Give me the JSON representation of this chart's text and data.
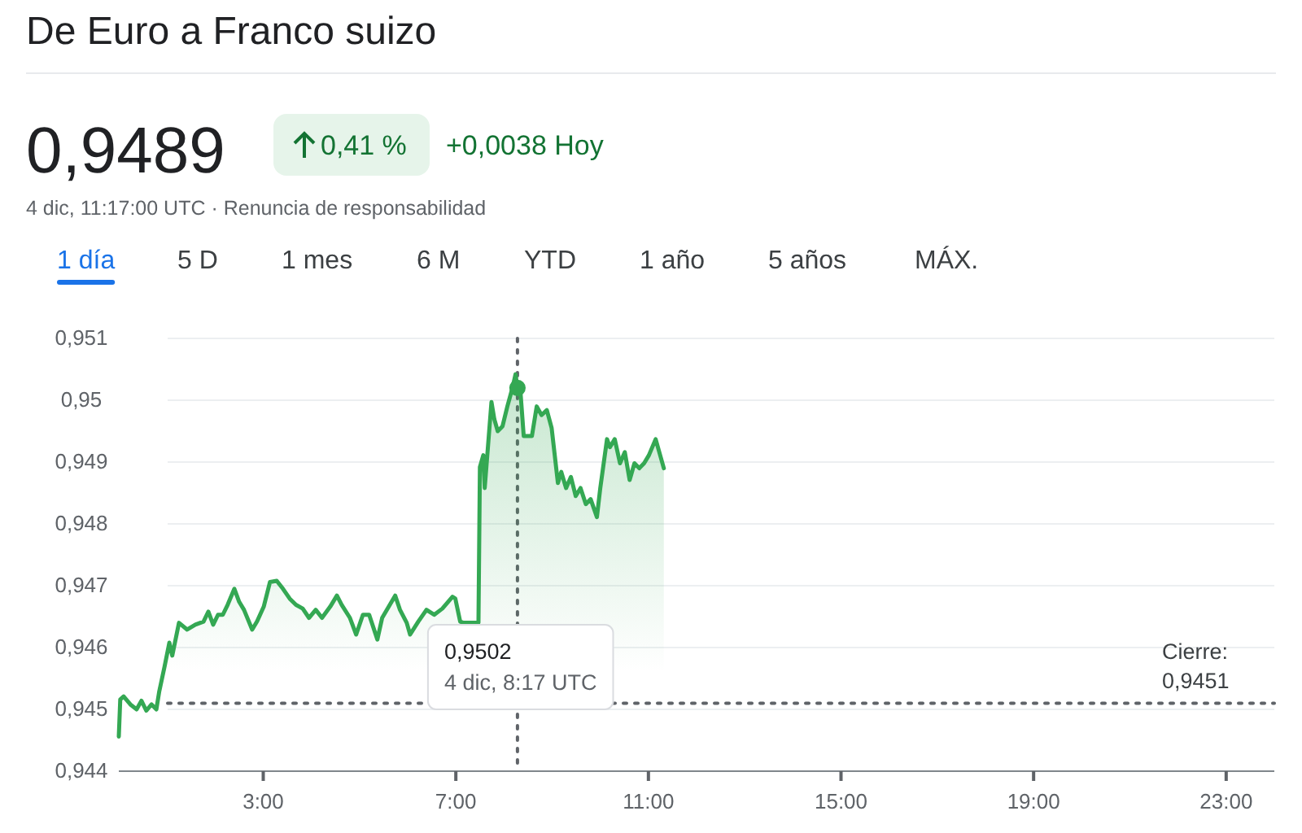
{
  "chart_data": {
    "type": "area",
    "title": "De Euro a Franco suizo",
    "annotations": [
      "0,9489",
      "0,41 %",
      "+0,0038 Hoy",
      "4 dic, 11:17:00 UTC · Renuncia de responsabilidad",
      "1 día",
      "5 D",
      "1 mes",
      "6 M",
      "YTD",
      "1 año",
      "5 años",
      "MÁX.",
      "0,9502\n4 dic, 8:17 UTC"
    ],
    "series": [
      {
        "color": "#34a853",
        "x": [
          0,
          0.03,
          0.1,
          0.24,
          0.37,
          0.47,
          0.57,
          0.68,
          0.78,
          0.84,
          0.95,
          1.05,
          1.11,
          1.25,
          1.42,
          1.59,
          1.76,
          1.86,
          1.96,
          2.06,
          2.16,
          2.26,
          2.4,
          2.5,
          2.6,
          2.77,
          2.87,
          3.01,
          3.14,
          3.28,
          3.41,
          3.55,
          3.68,
          3.82,
          3.95,
          4.09,
          4.22,
          4.39,
          4.53,
          4.63,
          4.8,
          4.93,
          5.07,
          5.2,
          5.37,
          5.47,
          5.74,
          5.84,
          5.98,
          6.05,
          6.22,
          6.39,
          6.55,
          6.72,
          6.93,
          6.99,
          7.09,
          7.16,
          7.47,
          7.5,
          7.57,
          7.6,
          7.74,
          7.8,
          7.87,
          7.97,
          8.07,
          8.18,
          8.24,
          8.28,
          8.34,
          8.41,
          8.58,
          8.68,
          8.78,
          8.89,
          8.99,
          9.12,
          9.19,
          9.29,
          9.39,
          9.49,
          9.59,
          9.7,
          9.8,
          9.93,
          10,
          10.14,
          10.2,
          10.3,
          10.41,
          10.51,
          10.61,
          10.71,
          10.81,
          10.91,
          11.01,
          11.15,
          11.32
        ],
        "values": [
          0.94456,
          0.94516,
          0.94521,
          0.94508,
          0.945,
          0.94514,
          0.94498,
          0.94508,
          0.945,
          0.94529,
          0.94569,
          0.94608,
          0.94587,
          0.9464,
          0.94629,
          0.94637,
          0.94642,
          0.94658,
          0.94637,
          0.94653,
          0.94653,
          0.94669,
          0.94695,
          0.94674,
          0.94661,
          0.94629,
          0.94642,
          0.94666,
          0.94706,
          0.94708,
          0.94695,
          0.94679,
          0.94669,
          0.94663,
          0.94648,
          0.94661,
          0.94648,
          0.94666,
          0.94684,
          0.94669,
          0.94648,
          0.94621,
          0.94653,
          0.94653,
          0.94613,
          0.94648,
          0.94684,
          0.94661,
          0.9464,
          0.94621,
          0.94642,
          0.94661,
          0.94653,
          0.94663,
          0.94682,
          0.94679,
          0.94642,
          0.9464,
          0.9464,
          0.94892,
          0.94911,
          0.94858,
          0.94997,
          0.94969,
          0.9495,
          0.94958,
          0.9499,
          0.95021,
          0.95042,
          0.9502,
          0.95016,
          0.94942,
          0.94942,
          0.9499,
          0.94976,
          0.94984,
          0.94955,
          0.94866,
          0.94884,
          0.94858,
          0.94876,
          0.94845,
          0.94858,
          0.94832,
          0.9484,
          0.94811,
          0.94858,
          0.94937,
          0.94924,
          0.94937,
          0.94898,
          0.94916,
          0.94871,
          0.94898,
          0.9489,
          0.94898,
          0.94911,
          0.94937,
          0.9489
        ]
      },
      {
        "type": "scatter",
        "color": "#34a853",
        "marker": "circle",
        "x": [
          8.28
        ],
        "values": [
          0.9502
        ]
      }
    ],
    "xlim": [
      0,
      24
    ],
    "xticks": [
      {
        "value": 3,
        "label": "3:00"
      },
      {
        "value": 7,
        "label": "7:00"
      },
      {
        "value": 11,
        "label": "11:00"
      },
      {
        "value": 15,
        "label": "15:00"
      },
      {
        "value": 19,
        "label": "19:00"
      },
      {
        "value": 23,
        "label": "23:00"
      }
    ],
    "ylim": [
      0.944,
      0.951
    ],
    "yticks": [
      {
        "value": 0.944,
        "label": "0,944"
      },
      {
        "value": 0.945,
        "label": "0,945"
      },
      {
        "value": 0.946,
        "label": "0,946"
      },
      {
        "value": 0.947,
        "label": "0,947"
      },
      {
        "value": 0.948,
        "label": "0,948"
      },
      {
        "value": 0.949,
        "label": "0,949"
      },
      {
        "value": 0.95,
        "label": "0,95"
      },
      {
        "value": 0.951,
        "label": "0,951"
      }
    ],
    "grid": "y",
    "marker": "none",
    "line_style": "solid",
    "ref_lines": [
      {
        "axis": "y",
        "value": 0.9451,
        "label": "Cierre: 0,9451",
        "color": "#5f6368",
        "line_style": "dotted"
      },
      {
        "axis": "x",
        "value": 8.28,
        "label": null,
        "color": "#5f6368",
        "line_style": "dotted"
      }
    ]
  }
}
